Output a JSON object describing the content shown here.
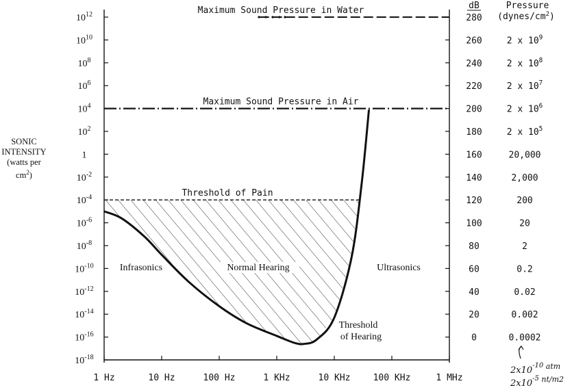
{
  "chart_data": {
    "type": "line",
    "title": "",
    "xlabel": "",
    "ylabel": "SONIC INTENSITY (watts per cm2)",
    "ylabel_lines": [
      "SONIC",
      "INTENSITY",
      "(watts per",
      "cm2)"
    ],
    "x_scale": "log",
    "xlim": [
      1,
      1000000
    ],
    "x_ticks": [
      1,
      10,
      100,
      1000,
      10000,
      100000,
      1000000
    ],
    "x_tick_labels": [
      "1 Hz",
      "10 Hz",
      "100 Hz",
      "1 KHz",
      "10 KHz",
      "100 KHz",
      "1 MHz"
    ],
    "y_scale": "log",
    "ylim_exponent": [
      -18,
      12
    ],
    "y_tick_exponents": [
      12,
      10,
      8,
      6,
      4,
      2,
      0,
      -2,
      -4,
      -6,
      -8,
      -10,
      -12,
      -14,
      -16,
      -18
    ],
    "y_tick_labels": [
      "10^12",
      "10^10",
      "10^8",
      "10^6",
      "10^4",
      "10^2",
      "1",
      "10^-2",
      "10^-4",
      "10^-6",
      "10^-8",
      "10^-10",
      "10^-12",
      "10^-14",
      "10^-16",
      "10^-18"
    ],
    "right_axis_db": {
      "header": "dB",
      "labels": [
        "280",
        "260",
        "240",
        "220",
        "200",
        "180",
        "160",
        "140",
        "120",
        "100",
        "80",
        "60",
        "40",
        "20",
        "0"
      ]
    },
    "right_axis_pressure": {
      "header_line1": "Pressure",
      "header_line2": "(dynes/cm2)",
      "labels": [
        "2 x 10^9",
        "2 x 10^8",
        "2 x 10^7",
        "2 x 10^6",
        "2 x 10^5",
        "20,000",
        "2,000",
        "200",
        "20",
        "2",
        "0.2",
        "0.02",
        "0.002",
        "0.0002"
      ]
    },
    "series": [
      {
        "name": "Threshold of Hearing",
        "x": [
          1,
          2,
          5,
          10,
          30,
          100,
          300,
          1000,
          2000,
          3000,
          5000,
          10000,
          20000,
          30000,
          40000
        ],
        "y_exponent": [
          -5.0,
          -5.6,
          -7.2,
          -8.8,
          -11.2,
          -13.3,
          -14.8,
          -15.9,
          -16.5,
          -16.6,
          -16.2,
          -14.3,
          -9.0,
          -2.5,
          3.9
        ]
      }
    ],
    "reference_lines": [
      {
        "label": "Maximum Sound Pressure in Water",
        "y_exponent": 12,
        "x_from": 500,
        "x_to": 1000000
      },
      {
        "label": "Maximum Sound Pressure in Air",
        "y_exponent": 4,
        "x_from": 1,
        "x_to": 1000000
      },
      {
        "label": "Threshold of Pain",
        "y_exponent": -4,
        "x_from": 1,
        "x_to": 22000
      }
    ],
    "region_labels": [
      {
        "label": "Infrasonics",
        "x": 7,
        "y_exponent": -10
      },
      {
        "label": "Normal Hearing",
        "x": 300,
        "y_exponent": -10
      },
      {
        "label": "Ultrasonics",
        "x": 200000,
        "y_exponent": -10
      },
      {
        "label": "Threshold",
        "x": 25000,
        "y_exponent": -14.8
      },
      {
        "label": "of Hearing",
        "x": 25000,
        "y_exponent": -15.9
      }
    ],
    "handwritten_notes": [
      "2x10 -10 atm",
      "2x10 -5 nt/m2"
    ],
    "hatched_region": "Normal Hearing (between threshold of hearing and threshold of pain)"
  }
}
